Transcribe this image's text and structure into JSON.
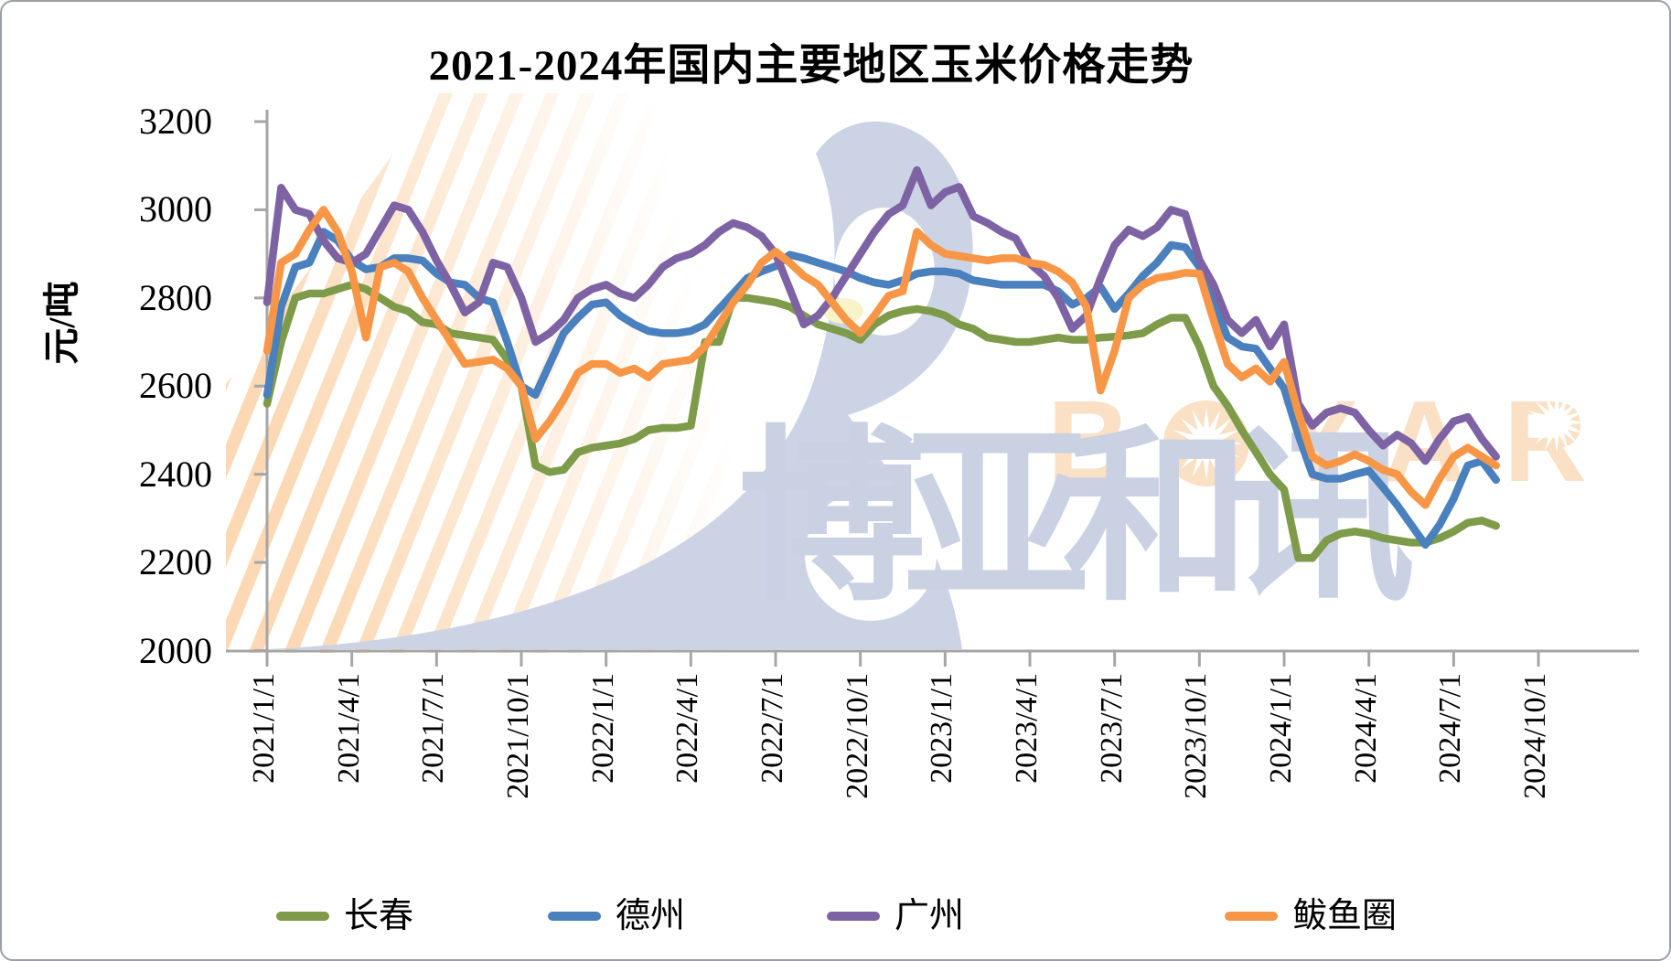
{
  "title": "2021-2024年国内主要地区玉米价格走势",
  "y_axis": {
    "label": "元/吨",
    "min": 2000,
    "max": 3200,
    "ticks": [
      3200,
      3000,
      2800,
      2600,
      2400,
      2200,
      2000
    ]
  },
  "x_axis": {
    "tick_labels": [
      "2021/1/1",
      "2021/4/1",
      "2021/7/1",
      "2021/10/1",
      "2022/1/1",
      "2022/4/1",
      "2022/7/1",
      "2022/10/1",
      "2023/1/1",
      "2023/4/1",
      "2023/7/1",
      "2023/10/1",
      "2024/1/1",
      "2024/4/1",
      "2024/7/1",
      "2024/10/1"
    ]
  },
  "legend": [
    {
      "label": "长春",
      "color": "#7d9b49"
    },
    {
      "label": "德州",
      "color": "#4a80bd"
    },
    {
      "label": "广州",
      "color": "#7e63a4"
    },
    {
      "label": "鲅鱼圈",
      "color": "#f79646"
    }
  ],
  "watermarks": {
    "brand": "BOYAR",
    "cn": "博亚和讯"
  },
  "colors": {
    "axis": "#a6a6a6",
    "watermark_blue": "#cbd3e5",
    "watermark_peach": "#fae0c4"
  },
  "chart_data": {
    "type": "line",
    "title": "2021-2024年国内主要地区玉米价格走势",
    "ylabel": "元/吨",
    "ylim": [
      2000,
      3200
    ],
    "grid": false,
    "legend_position": "bottom",
    "x_start_date": "2021/1/1",
    "x_step": "half-month",
    "x_end_date": "2024/8/15",
    "series": [
      {
        "name": "长春",
        "color": "#7d9b49",
        "values": [
          2560,
          2700,
          2800,
          2810,
          2810,
          2820,
          2830,
          2820,
          2800,
          2780,
          2770,
          2745,
          2740,
          2720,
          2715,
          2710,
          2705,
          2660,
          2600,
          2420,
          2405,
          2410,
          2450,
          2460,
          2465,
          2470,
          2480,
          2500,
          2505,
          2505,
          2510,
          2700,
          2700,
          2800,
          2800,
          2795,
          2790,
          2780,
          2760,
          2740,
          2730,
          2720,
          2705,
          2740,
          2760,
          2770,
          2775,
          2770,
          2760,
          2740,
          2730,
          2710,
          2705,
          2700,
          2700,
          2705,
          2710,
          2705,
          2705,
          2710,
          2712,
          2715,
          2720,
          2740,
          2755,
          2755,
          2690,
          2600,
          2555,
          2500,
          2450,
          2400,
          2365,
          2210,
          2210,
          2250,
          2265,
          2270,
          2265,
          2255,
          2250,
          2245,
          2245,
          2255,
          2270,
          2290,
          2295,
          2283
        ]
      },
      {
        "name": "德州",
        "color": "#4a80bd",
        "values": [
          2580,
          2780,
          2870,
          2880,
          2950,
          2930,
          2885,
          2865,
          2870,
          2890,
          2890,
          2885,
          2855,
          2835,
          2830,
          2800,
          2790,
          2700,
          2600,
          2580,
          2650,
          2720,
          2755,
          2785,
          2790,
          2760,
          2740,
          2725,
          2720,
          2720,
          2725,
          2740,
          2775,
          2810,
          2845,
          2860,
          2872,
          2898,
          2890,
          2880,
          2870,
          2860,
          2845,
          2835,
          2830,
          2840,
          2855,
          2860,
          2860,
          2855,
          2840,
          2835,
          2830,
          2830,
          2830,
          2830,
          2815,
          2785,
          2800,
          2825,
          2775,
          2810,
          2850,
          2880,
          2920,
          2915,
          2870,
          2790,
          2710,
          2690,
          2685,
          2640,
          2595,
          2490,
          2400,
          2390,
          2390,
          2400,
          2408,
          2370,
          2330,
          2285,
          2240,
          2285,
          2345,
          2420,
          2430,
          2387
        ]
      },
      {
        "name": "广州",
        "color": "#7e63a4",
        "values": [
          2790,
          3050,
          3000,
          2990,
          2930,
          2890,
          2880,
          2900,
          2955,
          3010,
          3000,
          2950,
          2885,
          2830,
          2767,
          2790,
          2880,
          2870,
          2800,
          2700,
          2720,
          2750,
          2800,
          2820,
          2830,
          2810,
          2800,
          2830,
          2870,
          2890,
          2900,
          2920,
          2950,
          2970,
          2960,
          2940,
          2900,
          2820,
          2740,
          2760,
          2800,
          2850,
          2900,
          2950,
          2990,
          3010,
          3090,
          3010,
          3040,
          3052,
          2985,
          2970,
          2950,
          2935,
          2878,
          2850,
          2800,
          2730,
          2760,
          2845,
          2920,
          2955,
          2940,
          2960,
          3000,
          2990,
          2886,
          2830,
          2750,
          2720,
          2750,
          2690,
          2740,
          2560,
          2510,
          2540,
          2550,
          2540,
          2500,
          2465,
          2490,
          2470,
          2430,
          2480,
          2520,
          2530,
          2480,
          2440
        ]
      },
      {
        "name": "鲅鱼圈",
        "color": "#f79646",
        "values": [
          2680,
          2880,
          2900,
          2955,
          3000,
          2950,
          2860,
          2710,
          2870,
          2880,
          2860,
          2800,
          2750,
          2700,
          2650,
          2655,
          2660,
          2640,
          2600,
          2480,
          2520,
          2570,
          2630,
          2650,
          2650,
          2630,
          2640,
          2620,
          2650,
          2655,
          2660,
          2690,
          2740,
          2790,
          2830,
          2880,
          2905,
          2880,
          2850,
          2830,
          2790,
          2750,
          2720,
          2760,
          2805,
          2815,
          2950,
          2920,
          2900,
          2895,
          2890,
          2885,
          2890,
          2890,
          2880,
          2875,
          2860,
          2835,
          2780,
          2590,
          2680,
          2800,
          2830,
          2845,
          2850,
          2857,
          2855,
          2750,
          2650,
          2620,
          2640,
          2610,
          2655,
          2540,
          2440,
          2420,
          2430,
          2445,
          2430,
          2410,
          2400,
          2360,
          2330,
          2390,
          2440,
          2460,
          2440,
          2420
        ]
      }
    ]
  }
}
